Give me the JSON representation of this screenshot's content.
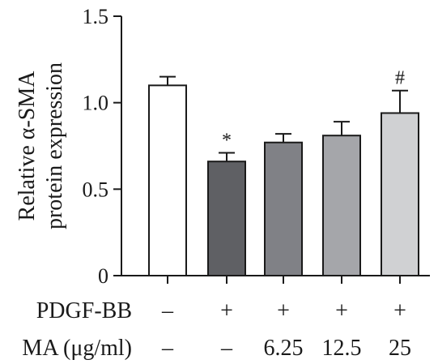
{
  "chart_data": {
    "type": "bar",
    "title": "",
    "ylabel_lines": [
      "Relative α-SMA",
      "protein expression"
    ],
    "xlabel": "",
    "ylim": [
      0,
      1.5
    ],
    "yticks": [
      {
        "value": 0,
        "label": "0"
      },
      {
        "value": 0.5,
        "label": "0.5"
      },
      {
        "value": 1.0,
        "label": "1.0"
      },
      {
        "value": 1.5,
        "label": "1.5"
      }
    ],
    "bars": [
      {
        "value": 1.1,
        "error": 0.05,
        "annotation": "",
        "fill": "#ffffff"
      },
      {
        "value": 0.66,
        "error": 0.05,
        "annotation": "*",
        "fill": "#5f6064"
      },
      {
        "value": 0.77,
        "error": 0.05,
        "annotation": "",
        "fill": "#808186"
      },
      {
        "value": 0.81,
        "error": 0.08,
        "annotation": "",
        "fill": "#a5a6aa"
      },
      {
        "value": 0.94,
        "error": 0.13,
        "annotation": "#",
        "fill": "#d0d1d3"
      }
    ],
    "conditions": [
      {
        "label": "PDGF-BB",
        "values": [
          "–",
          "+",
          "+",
          "+",
          "+"
        ]
      },
      {
        "label": "MA (μg/ml)",
        "values": [
          "–",
          "–",
          "6.25",
          "12.5",
          "25"
        ]
      }
    ]
  }
}
